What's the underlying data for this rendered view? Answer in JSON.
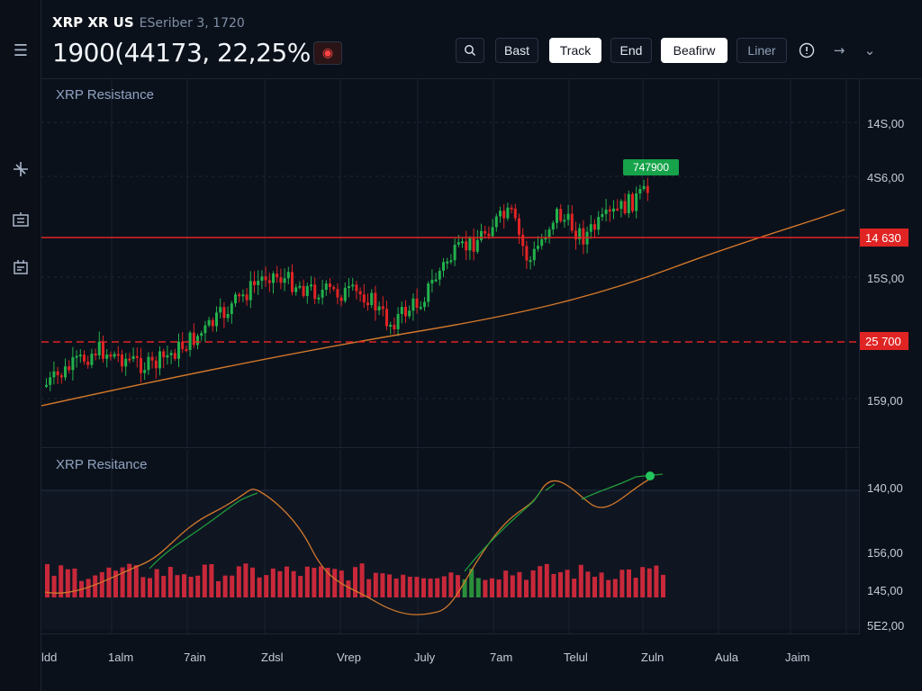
{
  "header": {
    "symbol": "XRP XR US",
    "exchange": "ESeriber 3, 1720",
    "price": "1900(44173, 22,25%"
  },
  "toolbar": {
    "buttons": [
      {
        "label": "Bast"
      },
      {
        "label": "Track"
      },
      {
        "label": "End"
      },
      {
        "label": "Beafirw"
      },
      {
        "label": "Liner"
      }
    ]
  },
  "main_panel": {
    "title": "XRP  Resistance",
    "y_ticks": [
      "14S,00",
      "4S6,00",
      "15S,00",
      "159,00"
    ],
    "resistance_tag_upper": "14 630",
    "resistance_tag_lower": "25 700",
    "last_price_tag": "747900"
  },
  "sub_panel": {
    "title": "XRP  Resitance",
    "y_ticks": [
      "140,00",
      "156,00",
      "145,00",
      "5E2,00"
    ]
  },
  "x_axis": {
    "ticks": [
      "ldd",
      "1alm",
      "7ain",
      "Zdsl",
      "Vrep",
      "July",
      "7am",
      "Telul",
      "Zuln",
      "Aula",
      "Jaim"
    ]
  },
  "colors": {
    "up": "#22b14c",
    "down": "#e02424",
    "line": "#d2782a",
    "resistance": "#e02424"
  },
  "icons": {
    "menu": "menu-icon",
    "draw": "pointer-tool-icon",
    "indicators": "indicator-icon",
    "calendar": "calendar-icon",
    "alert": "alert-icon",
    "search": "search-icon",
    "info": "info-icon",
    "forward": "arrow-right-icon",
    "more": "chevron-down-icon"
  }
}
